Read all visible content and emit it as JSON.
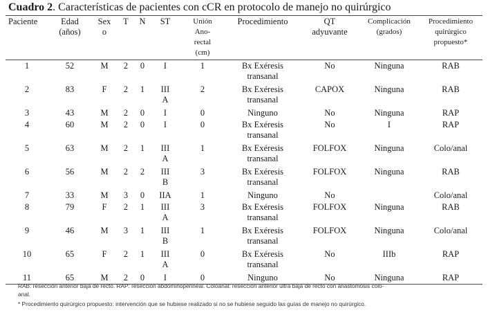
{
  "caption": {
    "label": "Cuadro 2",
    "text": ". Características de pacientes con cCR en protocolo de manejo no quirúrgico"
  },
  "table": {
    "headers": {
      "paciente": "Paciente",
      "edad": "Edad\n(años)",
      "sexo": "Sex\no",
      "t": "T",
      "n": "N",
      "st": "ST",
      "union": "Unión\nAno-\nrectal\n(cm)",
      "procedimiento": "Procedimiento",
      "qt": "QT\nadyuvante",
      "complicacion": "Complicación\n(grados)",
      "propuesto": "Procedimiento\nquirúrgico\npropuesto*"
    },
    "rows": [
      {
        "paciente": "1",
        "edad": "52",
        "sexo": "M",
        "t": "2",
        "n": "0",
        "st": "I",
        "union": "1",
        "procedimiento": "Bx Exéresis\ntransanal",
        "qt": "No",
        "complicacion": "Ninguna",
        "propuesto": "RAB"
      },
      {
        "paciente": "2",
        "edad": "83",
        "sexo": "F",
        "t": "2",
        "n": "1",
        "st": "III\nA",
        "union": "2",
        "procedimiento": "Bx Exéresis\ntransanal",
        "qt": "CAPOX",
        "complicacion": "Ninguna",
        "propuesto": "RAB"
      },
      {
        "paciente": "3",
        "edad": "43",
        "sexo": "M",
        "t": "2",
        "n": "0",
        "st": "I",
        "union": "0",
        "procedimiento": "Ninguno",
        "qt": "No",
        "complicacion": "Ninguna",
        "propuesto": "RAP"
      },
      {
        "paciente": "4",
        "edad": "60",
        "sexo": "M",
        "t": "2",
        "n": "0",
        "st": "I",
        "union": "0",
        "procedimiento": "Bx Exéresis\ntransanal",
        "qt": "No",
        "complicacion": "I",
        "propuesto": "RAP"
      },
      {
        "paciente": "5",
        "edad": "63",
        "sexo": "M",
        "t": "2",
        "n": "1",
        "st": "III\nA",
        "union": "1",
        "procedimiento": "Bx Exéresis\ntransanal",
        "qt": "FOLFOX",
        "complicacion": "Ninguna",
        "propuesto": "Colo/anal"
      },
      {
        "paciente": "6",
        "edad": "56",
        "sexo": "M",
        "t": "2",
        "n": "2",
        "st": "III\nB",
        "union": "3",
        "procedimiento": "Bx Exéresis\ntransanal",
        "qt": "FOLFOX",
        "complicacion": "Ninguna",
        "propuesto": "RAB"
      },
      {
        "paciente": "7",
        "edad": "33",
        "sexo": "M",
        "t": "3",
        "n": "0",
        "st": "IIA",
        "union": "1",
        "procedimiento": "Ninguno",
        "qt": "No",
        "complicacion": "",
        "propuesto": "Colo/anal"
      },
      {
        "paciente": "8",
        "edad": "79",
        "sexo": "F",
        "t": "2",
        "n": "1",
        "st": "III\nA",
        "union": "3",
        "procedimiento": "Bx Exéresis\ntransanal",
        "qt": "FOLFOX",
        "complicacion": "Ninguna",
        "propuesto": "RAB"
      },
      {
        "paciente": "9",
        "edad": "46",
        "sexo": "M",
        "t": "3",
        "n": "1",
        "st": "III\nB",
        "union": "1",
        "procedimiento": "Bx Exéresis\ntransanal",
        "qt": "FOLFOX",
        "complicacion": "Ninguna",
        "propuesto": "Colo/anal"
      },
      {
        "paciente": "10",
        "edad": "65",
        "sexo": "F",
        "t": "2",
        "n": "1",
        "st": "III\nA",
        "union": "0",
        "procedimiento": "Bx Exéresis\ntransanal",
        "qt": "No",
        "complicacion": "IIIb",
        "propuesto": "RAP"
      },
      {
        "paciente": "11",
        "edad": "65",
        "sexo": "M",
        "t": "2",
        "n": "0",
        "st": "I",
        "union": "0",
        "procedimiento": "Ninguno",
        "qt": "No",
        "complicacion": "Ninguna",
        "propuesto": "RAP"
      }
    ]
  },
  "footnotes": {
    "abbrev": "RAB: resección anterior baja de recto. RAP: resección abdominoperineal. Coloanal: resección anterior ultra baja de recto con anastomosis colo-\nanal.",
    "asterisk": "* Procedimiento quirúrgico propuesto: intervención que se hubiese realizado si no se hubiese seguido las guías de manejo no quirúrgico."
  }
}
